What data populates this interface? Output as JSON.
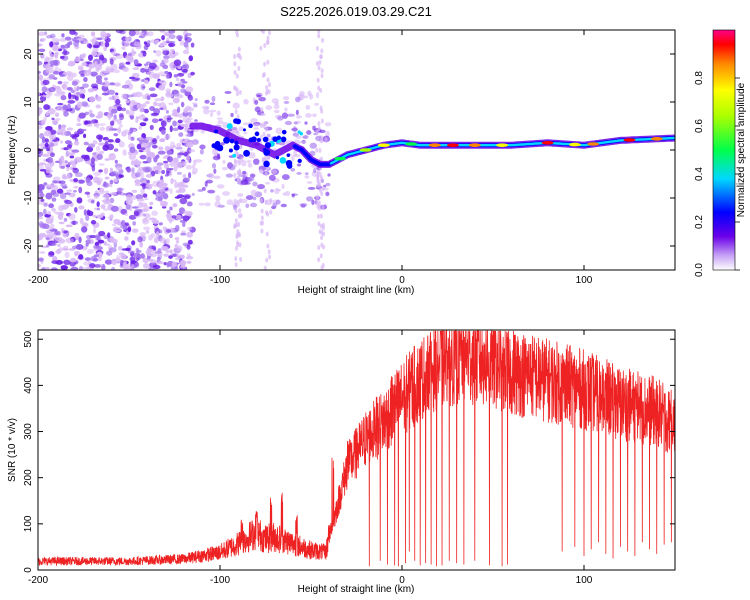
{
  "title": "S225.2026.019.03.29.C21",
  "colors": {
    "axis": "#000000",
    "snr_line": "#ee2222",
    "scatter_light": "#d9b8f7",
    "scatter_mid": "#a070f0",
    "scatter_dark": "#6a1ee8"
  },
  "chart_data": [
    {
      "id": "spectrogram",
      "type": "heatmap",
      "title": "S225.2026.019.03.29.C21",
      "xlabel": "Height of straight line (km)",
      "ylabel": "Frequency (Hz)",
      "xlim": [
        -200,
        150
      ],
      "ylim": [
        -25,
        25
      ],
      "xticks": [
        -200,
        -100,
        0,
        100
      ],
      "xtick_labels": [
        "-200",
        "-100",
        "0",
        "100"
      ],
      "yticks": [
        -20,
        -10,
        0,
        10,
        20
      ],
      "ytick_labels": [
        "-20",
        "-10",
        "0",
        "10",
        "20"
      ],
      "colorbar": {
        "label": "Normalized spectral amplitude",
        "range": [
          0,
          1
        ],
        "ticks": [
          0.0,
          0.2,
          0.4,
          0.6,
          0.8
        ],
        "tick_labels": [
          "0.0",
          "0.2",
          "0.4",
          "0.6",
          "0.8"
        ]
      },
      "signal_track": {
        "x": [
          -110,
          -100,
          -90,
          -80,
          -70,
          -60,
          -55,
          -50,
          -45,
          -40,
          -35,
          -30,
          -20,
          -10,
          0,
          10,
          20,
          40,
          60,
          80,
          100,
          120,
          150
        ],
        "freq": [
          5,
          4,
          2,
          1,
          -1,
          1,
          0,
          -2,
          -3,
          -3,
          -2,
          -1,
          0,
          1,
          1.5,
          1,
          1,
          1,
          1,
          1.5,
          1,
          2,
          2.5
        ]
      }
    },
    {
      "id": "snr",
      "type": "line",
      "xlabel": "Height of straight line (km)",
      "ylabel": "SNR (10 * v/v)",
      "xlim": [
        -200,
        150
      ],
      "ylim": [
        0,
        520
      ],
      "xticks": [
        -200,
        -100,
        0,
        100
      ],
      "xtick_labels": [
        "-200",
        "-100",
        "0",
        "100"
      ],
      "yticks": [
        0,
        100,
        200,
        300,
        400,
        500
      ],
      "ytick_labels": [
        "0",
        "100",
        "200",
        "300",
        "400",
        "500"
      ],
      "envelope": {
        "x": [
          -200,
          -150,
          -120,
          -100,
          -90,
          -80,
          -75,
          -70,
          -60,
          -50,
          -42,
          -35,
          -30,
          -20,
          -10,
          0,
          10,
          20,
          30,
          40,
          50,
          60,
          80,
          100,
          120,
          140,
          150
        ],
        "y": [
          20,
          20,
          25,
          40,
          60,
          85,
          70,
          75,
          60,
          45,
          40,
          150,
          230,
          290,
          330,
          380,
          420,
          460,
          470,
          470,
          460,
          440,
          420,
          400,
          370,
          350,
          320
        ]
      },
      "peaks": {
        "x": [
          -88,
          -80,
          -72,
          -66,
          -58,
          -40,
          -38,
          -30,
          -25,
          -15,
          -5,
          5,
          15,
          25,
          35,
          45,
          55,
          70,
          90,
          110,
          130,
          148
        ],
        "y": [
          110,
          130,
          160,
          170,
          120,
          100,
          250,
          300,
          330,
          380,
          420,
          470,
          490,
          500,
          510,
          505,
          490,
          470,
          460,
          430,
          440,
          380
        ]
      },
      "dropouts": {
        "x": [
          -18,
          -12,
          -8,
          -4,
          -2,
          2,
          4,
          7,
          10,
          13,
          16,
          19,
          22,
          26,
          30,
          34,
          40,
          48,
          55,
          58,
          88,
          95,
          100,
          104,
          108,
          112,
          116,
          120,
          124,
          128,
          132,
          136,
          140,
          144,
          148
        ],
        "y": [
          8,
          20,
          12,
          10,
          8,
          15,
          40,
          20,
          10,
          15,
          12,
          8,
          10,
          20,
          15,
          12,
          20,
          10,
          8,
          12,
          40,
          50,
          30,
          45,
          60,
          35,
          25,
          50,
          40,
          30,
          60,
          45,
          35,
          55,
          60
        ]
      }
    }
  ]
}
